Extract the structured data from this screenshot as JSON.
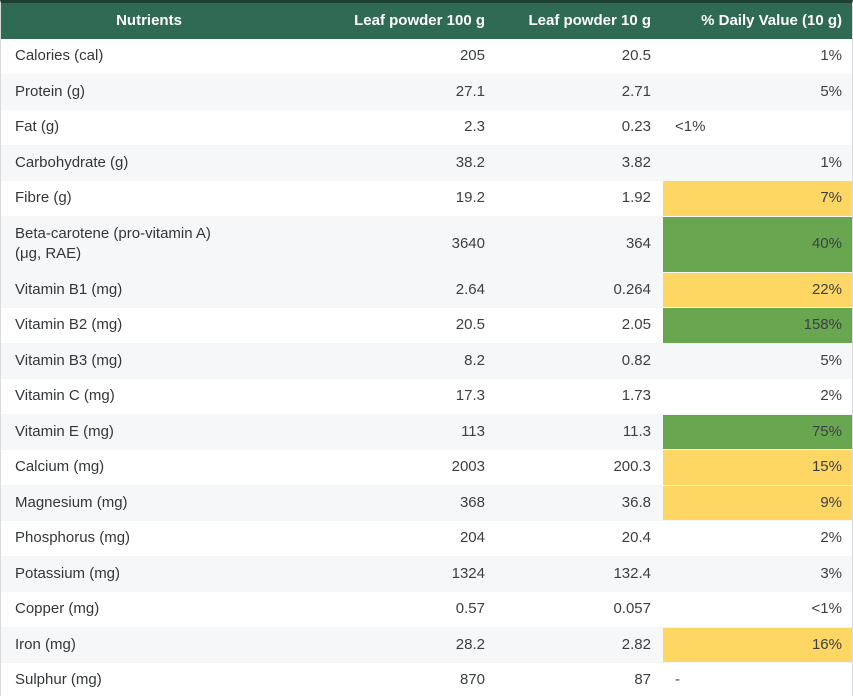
{
  "colors": {
    "header_bg": "#2e6b52",
    "top_border": "#1e4030",
    "bottom_bar": "#2e6b52",
    "stripe": "#f6f7f9",
    "highlight_yellow": "#fdd663",
    "highlight_green": "#68a74f"
  },
  "chart_data": {
    "type": "table",
    "columns": [
      "Nutrients",
      "Leaf powder 100 g",
      "Leaf powder 10 g",
      "% Daily Value (10 g)"
    ],
    "rows": [
      {
        "nutrient": "Calories (cal)",
        "per_100g": "205",
        "per_10g": "20.5",
        "daily_value": "1%",
        "highlight": "none",
        "dv_align": "right",
        "shaded": false
      },
      {
        "nutrient": "Protein (g)",
        "per_100g": "27.1",
        "per_10g": "2.71",
        "daily_value": "5%",
        "highlight": "none",
        "dv_align": "right",
        "shaded": true
      },
      {
        "nutrient": "Fat (g)",
        "per_100g": "2.3",
        "per_10g": "0.23",
        "daily_value": "<1%",
        "highlight": "none",
        "dv_align": "left",
        "shaded": false
      },
      {
        "nutrient": "Carbohydrate (g)",
        "per_100g": "38.2",
        "per_10g": "3.82",
        "daily_value": "1%",
        "highlight": "none",
        "dv_align": "right",
        "shaded": true
      },
      {
        "nutrient": "Fibre (g)",
        "per_100g": "19.2",
        "per_10g": "1.92",
        "daily_value": "7%",
        "highlight": "yellow",
        "dv_align": "right",
        "shaded": false
      },
      {
        "nutrient": "Beta-carotene (pro-vitamin A)\n(μg, RAE)",
        "per_100g": "3640",
        "per_10g": "364",
        "daily_value": "40%",
        "highlight": "green",
        "dv_align": "right",
        "shaded": true
      },
      {
        "nutrient": "Vitamin B1 (mg)",
        "per_100g": "2.64",
        "per_10g": "0.264",
        "daily_value": "22%",
        "highlight": "yellow",
        "dv_align": "right",
        "shaded": true
      },
      {
        "nutrient": "Vitamin B2 (mg)",
        "per_100g": "20.5",
        "per_10g": "2.05",
        "daily_value": "158%",
        "highlight": "green",
        "dv_align": "right",
        "shaded": false
      },
      {
        "nutrient": "Vitamin B3 (mg)",
        "per_100g": "8.2",
        "per_10g": "0.82",
        "daily_value": "5%",
        "highlight": "none",
        "dv_align": "right",
        "shaded": true
      },
      {
        "nutrient": "Vitamin C (mg)",
        "per_100g": "17.3",
        "per_10g": "1.73",
        "daily_value": "2%",
        "highlight": "none",
        "dv_align": "right",
        "shaded": false
      },
      {
        "nutrient": "Vitamin E (mg)",
        "per_100g": "113",
        "per_10g": "11.3",
        "daily_value": "75%",
        "highlight": "green",
        "dv_align": "right",
        "shaded": true
      },
      {
        "nutrient": "Calcium (mg)",
        "per_100g": "2003",
        "per_10g": "200.3",
        "daily_value": "15%",
        "highlight": "yellow",
        "dv_align": "right",
        "shaded": false
      },
      {
        "nutrient": "Magnesium (mg)",
        "per_100g": "368",
        "per_10g": "36.8",
        "daily_value": "9%",
        "highlight": "yellow",
        "dv_align": "right",
        "shaded": true
      },
      {
        "nutrient": "Phosphorus (mg)",
        "per_100g": "204",
        "per_10g": "20.4",
        "daily_value": "2%",
        "highlight": "none",
        "dv_align": "right",
        "shaded": false
      },
      {
        "nutrient": "Potassium (mg)",
        "per_100g": "1324",
        "per_10g": "132.4",
        "daily_value": "3%",
        "highlight": "none",
        "dv_align": "right",
        "shaded": true
      },
      {
        "nutrient": "Copper (mg)",
        "per_100g": "0.57",
        "per_10g": "0.057",
        "daily_value": "<1%",
        "highlight": "none",
        "dv_align": "right",
        "shaded": false
      },
      {
        "nutrient": "Iron (mg)",
        "per_100g": "28.2",
        "per_10g": "2.82",
        "daily_value": "16%",
        "highlight": "yellow",
        "dv_align": "right",
        "shaded": true
      },
      {
        "nutrient": "Sulphur (mg)",
        "per_100g": "870",
        "per_10g": "87",
        "daily_value": "-",
        "highlight": "none",
        "dv_align": "left",
        "shaded": false
      }
    ]
  }
}
